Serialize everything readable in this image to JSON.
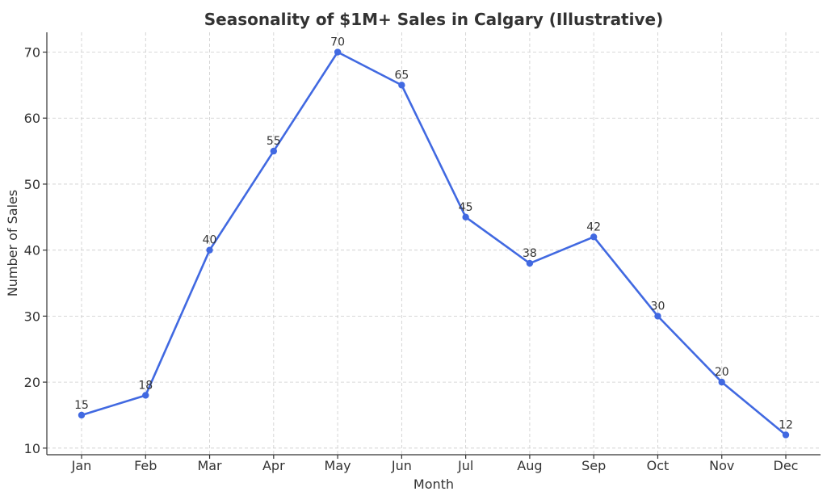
{
  "chart_data": {
    "type": "line",
    "title": "Seasonality of $1M+ Sales in Calgary (Illustrative)",
    "xlabel": "Month",
    "ylabel": "Number of Sales",
    "categories": [
      "Jan",
      "Feb",
      "Mar",
      "Apr",
      "May",
      "Jun",
      "Jul",
      "Aug",
      "Sep",
      "Oct",
      "Nov",
      "Dec"
    ],
    "series": [
      {
        "values": [
          15,
          18,
          40,
          55,
          70,
          65,
          45,
          38,
          42,
          30,
          20,
          12
        ],
        "color": "#4169e1"
      }
    ],
    "ylim": [
      9,
      73
    ],
    "yticks": [
      10,
      20,
      30,
      40,
      50,
      60,
      70
    ],
    "grid": true,
    "data_labels": true,
    "legend": "none"
  }
}
